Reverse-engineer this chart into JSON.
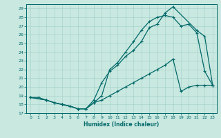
{
  "xlabel": "Humidex (Indice chaleur)",
  "bg_color": "#c8e8e0",
  "line_color": "#006868",
  "grid_color": "#a8d4cc",
  "xlim": [
    -0.5,
    23.5
  ],
  "ylim": [
    17,
    29.5
  ],
  "xticks": [
    0,
    1,
    2,
    3,
    4,
    5,
    6,
    7,
    8,
    9,
    10,
    11,
    12,
    13,
    14,
    15,
    16,
    17,
    18,
    19,
    20,
    21,
    22,
    23
  ],
  "yticks": [
    17,
    18,
    19,
    20,
    21,
    22,
    23,
    24,
    25,
    26,
    27,
    28,
    29
  ],
  "line1_x": [
    0,
    1,
    2,
    3,
    4,
    5,
    6,
    7,
    8,
    9,
    10,
    11,
    12,
    13,
    14,
    15,
    16,
    17,
    18,
    19,
    20,
    21,
    22,
    23
  ],
  "line1_y": [
    18.8,
    18.8,
    18.5,
    18.2,
    18.0,
    17.8,
    17.5,
    17.5,
    18.2,
    18.5,
    19.0,
    19.5,
    20.0,
    20.5,
    21.0,
    21.5,
    22.0,
    22.5,
    23.2,
    19.5,
    20.0,
    20.2,
    20.2,
    20.2
  ],
  "line2_x": [
    0,
    2,
    3,
    4,
    5,
    6,
    7,
    8,
    9,
    10,
    11,
    12,
    13,
    14,
    15,
    16,
    17,
    18,
    19,
    20,
    21,
    22,
    23
  ],
  "line2_y": [
    18.8,
    18.5,
    18.2,
    18.0,
    17.8,
    17.5,
    17.5,
    18.2,
    19.0,
    22.0,
    22.8,
    24.0,
    25.2,
    26.5,
    27.5,
    28.0,
    28.2,
    28.0,
    27.0,
    27.2,
    26.2,
    21.8,
    20.2
  ],
  "line3_x": [
    0,
    2,
    3,
    4,
    5,
    6,
    7,
    8,
    9,
    10,
    11,
    12,
    13,
    14,
    15,
    16,
    17,
    18,
    21,
    22,
    23
  ],
  "line3_y": [
    18.8,
    18.5,
    18.2,
    18.0,
    17.8,
    17.5,
    17.5,
    18.5,
    20.5,
    21.8,
    22.5,
    23.5,
    24.2,
    25.2,
    26.8,
    27.2,
    28.5,
    29.2,
    26.5,
    25.8,
    20.2
  ]
}
